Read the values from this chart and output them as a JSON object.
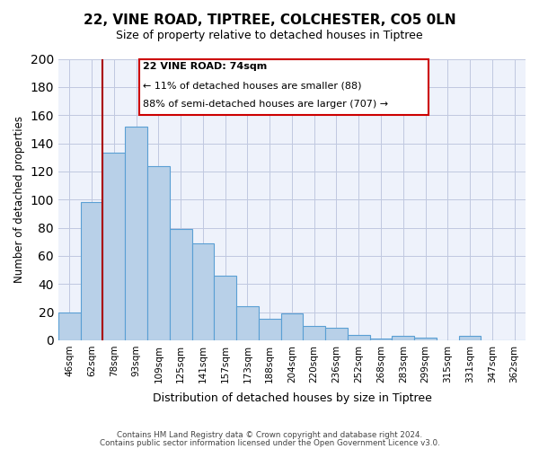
{
  "title": "22, VINE ROAD, TIPTREE, COLCHESTER, CO5 0LN",
  "subtitle": "Size of property relative to detached houses in Tiptree",
  "xlabel": "Distribution of detached houses by size in Tiptree",
  "ylabel": "Number of detached properties",
  "categories": [
    "46sqm",
    "62sqm",
    "78sqm",
    "93sqm",
    "109sqm",
    "125sqm",
    "141sqm",
    "157sqm",
    "173sqm",
    "188sqm",
    "204sqm",
    "220sqm",
    "236sqm",
    "252sqm",
    "268sqm",
    "283sqm",
    "299sqm",
    "315sqm",
    "331sqm",
    "347sqm",
    "362sqm"
  ],
  "values": [
    20,
    98,
    133,
    152,
    124,
    79,
    69,
    46,
    24,
    15,
    19,
    10,
    9,
    4,
    1,
    3,
    2,
    0,
    3,
    0,
    0
  ],
  "bar_color": "#b8d0e8",
  "bar_edge_color": "#5a9fd4",
  "vline_x_index": 2,
  "vline_color": "#aa0000",
  "annotation_title": "22 VINE ROAD: 74sqm",
  "annotation_line1": "← 11% of detached houses are smaller (88)",
  "annotation_line2": "88% of semi-detached houses are larger (707) →",
  "annotation_box_color": "#ffffff",
  "annotation_box_edge": "#cc0000",
  "ylim": [
    0,
    200
  ],
  "yticks": [
    0,
    20,
    40,
    60,
    80,
    100,
    120,
    140,
    160,
    180,
    200
  ],
  "footer1": "Contains HM Land Registry data © Crown copyright and database right 2024.",
  "footer2": "Contains public sector information licensed under the Open Government Licence v3.0.",
  "bg_color": "#eef2fb",
  "grid_color": "#c0c8e0"
}
